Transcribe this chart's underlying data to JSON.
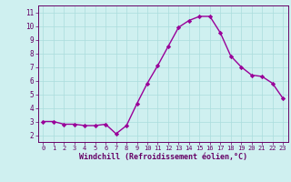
{
  "x": [
    0,
    1,
    2,
    3,
    4,
    5,
    6,
    7,
    8,
    9,
    10,
    11,
    12,
    13,
    14,
    15,
    16,
    17,
    18,
    19,
    20,
    21,
    22,
    23
  ],
  "y": [
    3.0,
    3.0,
    2.8,
    2.8,
    2.7,
    2.7,
    2.8,
    2.1,
    2.7,
    4.3,
    5.8,
    7.1,
    8.5,
    9.9,
    10.4,
    10.7,
    10.7,
    9.5,
    7.8,
    7.0,
    6.4,
    6.3,
    5.8,
    4.7
  ],
  "line_color": "#990099",
  "marker": "D",
  "marker_size": 2.2,
  "bg_color": "#cff0f0",
  "grid_color": "#aadddd",
  "axis_bg_color": "#660066",
  "xlabel": "Windchill (Refroidissement éolien,°C)",
  "xlim": [
    -0.5,
    23.5
  ],
  "ylim": [
    1.5,
    11.5
  ],
  "yticks": [
    2,
    3,
    4,
    5,
    6,
    7,
    8,
    9,
    10,
    11
  ],
  "xticks": [
    0,
    1,
    2,
    3,
    4,
    5,
    6,
    7,
    8,
    9,
    10,
    11,
    12,
    13,
    14,
    15,
    16,
    17,
    18,
    19,
    20,
    21,
    22,
    23
  ],
  "tick_color": "#660066",
  "spine_color": "#660066",
  "xlabel_color": "#660066",
  "xlabel_fontsize": 6.0,
  "xtick_fontsize": 5.0,
  "ytick_fontsize": 5.5,
  "bottom_bar_color": "#9900cc"
}
